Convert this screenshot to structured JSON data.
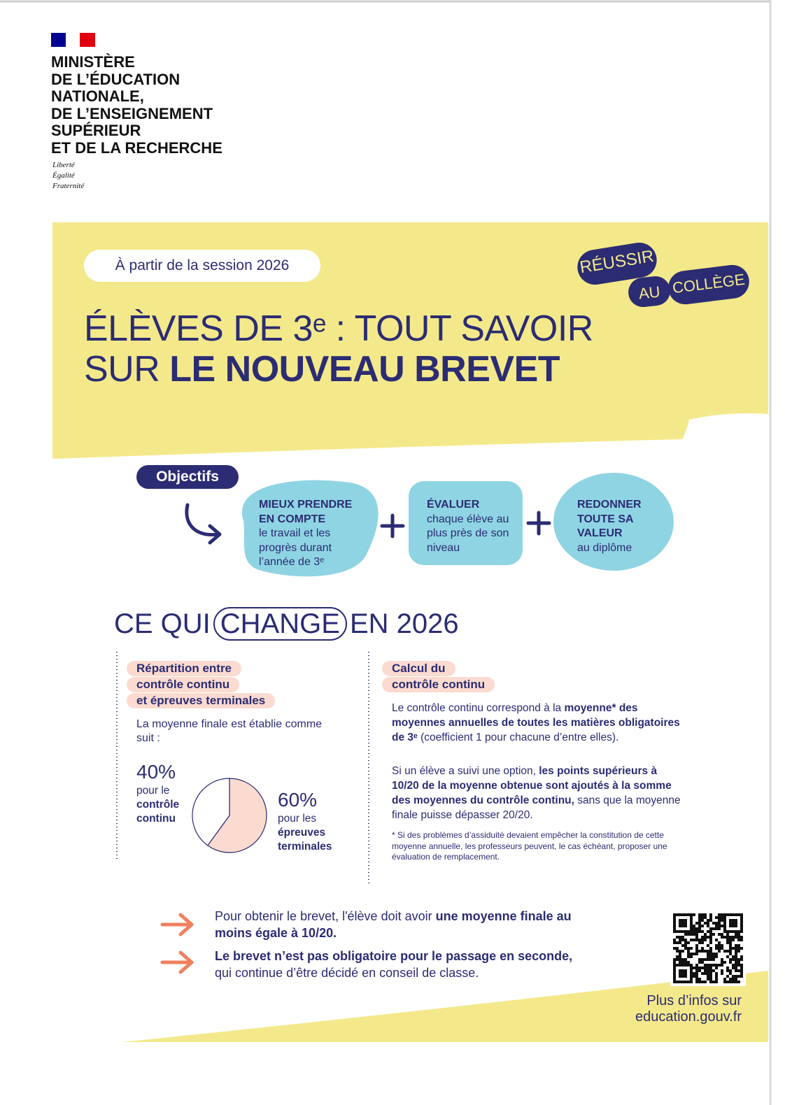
{
  "header": {
    "ministry": [
      "MINISTÈRE",
      "DE L’ÉDUCATION",
      "NATIONALE,",
      "DE L’ENSEIGNEMENT",
      "SUPÉRIEUR",
      "ET DE LA RECHERCHE"
    ],
    "motto": [
      "Liberté",
      "Égalité",
      "Fraternité"
    ]
  },
  "banner": {
    "session": "À partir de la session 2026",
    "badge": [
      "RÉUSSIR",
      "AU",
      "COLLÈGE"
    ],
    "title_lines": [
      [
        {
          "text": "ÉLÈVES DE 3ᵉ : TOUT SAVOIR",
          "bold": false
        }
      ],
      [
        {
          "text": "SUR ",
          "bold": false
        },
        {
          "text": "LE NOUVEAU BREVET",
          "bold": true
        }
      ]
    ]
  },
  "objectives": {
    "label": "Objectifs",
    "items": [
      {
        "bold": "MIEUX PRENDRE EN COMPTE",
        "text": "le travail et les progrès durant l’année de 3ᵉ"
      },
      {
        "bold": "ÉVALUER",
        "text": "chaque élève au plus près de son niveau"
      },
      {
        "bold": "REDONNER TOUTE SA VALEUR",
        "text": "au diplôme"
      }
    ]
  },
  "changes": {
    "title": [
      "CE QUI",
      "CHANGE",
      "EN 2026"
    ],
    "left": {
      "heading": [
        "Répartition entre",
        "contrôle continu",
        "et épreuves terminales"
      ],
      "intro": "La moyenne finale est établie comme suit :",
      "pie": {
        "values": [
          40,
          60
        ],
        "value_labels": [
          "40%",
          "60%"
        ],
        "colors": [
          "#ffffff",
          "#fbdbd0"
        ],
        "captions": [
          {
            "text": "pour le",
            "bold": "contrôle continu"
          },
          {
            "text": "pour les",
            "bold": "épreuves terminales"
          }
        ]
      }
    },
    "right": {
      "heading": [
        "Calcul du",
        "contrôle continu"
      ],
      "paragraphs": [
        [
          {
            "text": "Le contrôle continu correspond à la ",
            "bold": false
          },
          {
            "text": "moyenne* des moyennes annuelles de toutes les matières obligatoires de 3ᵉ",
            "bold": true
          },
          {
            "text": " (coefficient 1 pour chacune d’entre elles).",
            "bold": false
          }
        ],
        [
          {
            "text": "Si un élève a suivi une option, ",
            "bold": false
          },
          {
            "text": "les points supérieurs à 10/20 de la moyenne obtenue sont ajoutés à la somme des moyennes du contrôle continu,",
            "bold": true
          },
          {
            "text": " sans que la moyenne finale puisse dépasser 20/20.",
            "bold": false
          }
        ]
      ],
      "footnote": "* Si des problèmes d’assiduité devaient empêcher la constitution de cette moyenne annuelle, les professeurs peuvent, le cas échéant, proposer une évaluation de remplacement."
    }
  },
  "footer": {
    "notes": [
      [
        {
          "text": "Pour obtenir le brevet, l'élève doit avoir ",
          "bold": false
        },
        {
          "text": "une moyenne finale au moins égale à 10/20.",
          "bold": true
        }
      ],
      [
        {
          "text": "Le brevet n’est pas obligatoire pour le passage en seconde,",
          "bold": true
        },
        {
          "text": " qui continue d’être décidé en conseil de classe.",
          "bold": false
        }
      ]
    ],
    "more": [
      "Plus d’infos sur",
      "education.gouv.fr"
    ]
  }
}
